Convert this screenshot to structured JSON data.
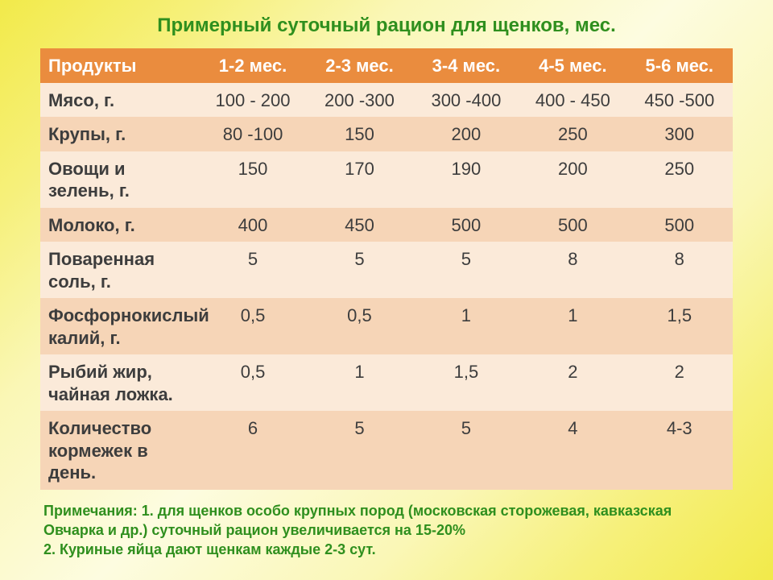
{
  "title": {
    "text": "Примерный суточный рацион для щенков, мес.",
    "color": "#2f8f1e",
    "fontsize": 24
  },
  "table": {
    "header_bg": "#ea8c3e",
    "header_text_color": "#ffffff",
    "row_odd_bg": "#fbead9",
    "row_even_bg": "#f6d5b7",
    "body_text_color": "#3d3d3d",
    "fontsize": 22,
    "columns": [
      "Продукты",
      "1-2 мес.",
      "2-3 мес.",
      "3-4 мес.",
      "4-5 мес.",
      "5-6 мес."
    ],
    "rows": [
      {
        "label": "Мясо, г.",
        "values": [
          "100 - 200",
          "200 -300",
          "300 -400",
          "400 - 450",
          "450 -500"
        ]
      },
      {
        "label": "Крупы, г.",
        "values": [
          "80 -100",
          "150",
          "200",
          "250",
          "300"
        ]
      },
      {
        "label": "Овощи и зелень, г.",
        "values": [
          "150",
          "170",
          "190",
          "200",
          "250"
        ]
      },
      {
        "label": "Молоко, г.",
        "values": [
          "400",
          "450",
          "500",
          "500",
          "500"
        ]
      },
      {
        "label": "Поваренная соль, г.",
        "values": [
          "5",
          "5",
          "5",
          "8",
          "8"
        ]
      },
      {
        "label": "Фосфорнокислый калий, г.",
        "values": [
          "0,5",
          "0,5",
          "1",
          "1",
          "1,5"
        ]
      },
      {
        "label": "Рыбий жир, чайная ложка.",
        "values": [
          "0,5",
          "1",
          "1,5",
          "2",
          "2"
        ]
      },
      {
        "label": "Количество кормежек в день.",
        "values": [
          "6",
          "5",
          "5",
          "4",
          "4-3"
        ]
      }
    ]
  },
  "notes": {
    "color": "#2f8f1e",
    "fontsize": 18,
    "lines": [
      "Примечания: 1. для щенков особо крупных пород (московская сторожевая, кавказская",
      "Овчарка  и др.) суточный рацион увеличивается на 15-20%",
      "2. Куриные яйца дают щенкам каждые 2-3 сут."
    ]
  }
}
